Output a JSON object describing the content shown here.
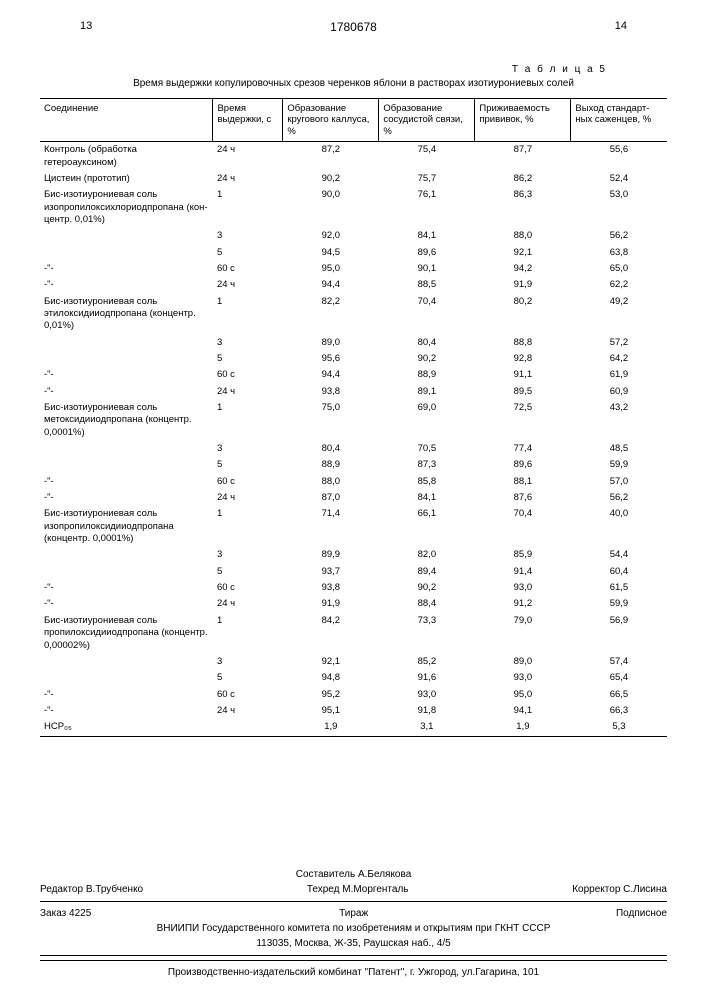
{
  "header": {
    "page_left": "13",
    "doc_number": "1780678",
    "page_right": "14"
  },
  "table": {
    "label": "Т а б л и ц а  5",
    "title": "Время выдержки копулировочных срезов черенков яблони в растворах изотиурониевых солей",
    "columns": [
      "Соединение",
      "Время выдерж­ки, с",
      "Образование кругового каллуса, %",
      "Образование сосудистой связи, %",
      "Приживае­мость при­вивок, %",
      "Выход стандарт­ных сажен­цев, %"
    ],
    "rows": [
      [
        "Контроль (обработка гетероауксином)",
        "24 ч",
        "87,2",
        "75,4",
        "87,7",
        "55,6"
      ],
      [
        "Цистеин (прототип)",
        "24 ч",
        "90,2",
        "75,7",
        "86,2",
        "52,4"
      ],
      [
        "Бис-изотиурониевая соль изопропилокси­хлориодпропана (кон­центр. 0,01%)",
        "1",
        "90,0",
        "76,1",
        "86,3",
        "53,0"
      ],
      [
        "",
        "3",
        "92,0",
        "84,1",
        "88,0",
        "56,2"
      ],
      [
        "",
        "5",
        "94,5",
        "89,6",
        "92,1",
        "63,8"
      ],
      [
        "-\"-",
        "60 с",
        "95,0",
        "90,1",
        "94,2",
        "65,0"
      ],
      [
        "-\"-",
        "24 ч",
        "94,4",
        "88,5",
        "91,9",
        "62,2"
      ],
      [
        "Бис-изотиурониевая соль этилоксидииод­пропана (концентр. 0,01%)",
        "1",
        "82,2",
        "70,4",
        "80,2",
        "49,2"
      ],
      [
        "",
        "3",
        "89,0",
        "80,4",
        "88,8",
        "57,2"
      ],
      [
        "",
        "5",
        "95,6",
        "90,2",
        "92,8",
        "64,2"
      ],
      [
        "-\"-",
        "60 с",
        "94,4",
        "88,9",
        "91,1",
        "61,9"
      ],
      [
        "-\"-",
        "24 ч",
        "93,8",
        "89,1",
        "89,5",
        "60,9"
      ],
      [
        "Бис-изотиурониевая соль метоксидииод­пропана (концентр. 0,0001%)",
        "1",
        "75,0",
        "69,0",
        "72,5",
        "43,2"
      ],
      [
        "",
        "3",
        "80,4",
        "70,5",
        "77,4",
        "48,5"
      ],
      [
        "",
        "5",
        "88,9",
        "87,3",
        "89,6",
        "59,9"
      ],
      [
        "-\"-",
        "60 с",
        "88,0",
        "85,8",
        "88,1",
        "57,0"
      ],
      [
        "-\"-",
        "24 ч",
        "87,0",
        "84,1",
        "87,6",
        "56,2"
      ],
      [
        "Бис-изотиурониевая соль изопропилоксиди­иодпропана (концентр. 0,0001%)",
        "1",
        "71,4",
        "66,1",
        "70,4",
        "40,0"
      ],
      [
        "",
        "3",
        "89,9",
        "82,0",
        "85,9",
        "54,4"
      ],
      [
        "",
        "5",
        "93,7",
        "89,4",
        "91,4",
        "60,4"
      ],
      [
        "-\"-",
        "60 с",
        "93,8",
        "90,2",
        "93,0",
        "61,5"
      ],
      [
        "-\"-",
        "24 ч",
        "91,9",
        "88,4",
        "91,2",
        "59,9"
      ],
      [
        "Бис-изотиурониевая соль пропилоксидииод­пропана (концентр. 0,00002%)",
        "1",
        "84,2",
        "73,3",
        "79,0",
        "56,9"
      ],
      [
        "",
        "3",
        "92,1",
        "85,2",
        "89,0",
        "57,4"
      ],
      [
        "",
        "5",
        "94,8",
        "91,6",
        "93,0",
        "65,4"
      ],
      [
        "-\"-",
        "60 с",
        "95,2",
        "93,0",
        "95,0",
        "66,5"
      ],
      [
        "-\"-",
        "24 ч",
        "95,1",
        "91,8",
        "94,1",
        "66,3"
      ],
      [
        "НСР₀₅",
        "",
        "1,9",
        "3,1",
        "1,9",
        "5,3"
      ]
    ]
  },
  "footer": {
    "compiler": "Составитель   А.Белякова",
    "editor": "Редактор В.Трубченко",
    "techred": "Техред М.Моргенталь",
    "corrector": "Корректор   С.Лисина",
    "order": "Заказ 4225",
    "tirazh": "Тираж",
    "podpisnoe": "Подписное",
    "org": "ВНИИПИ Государственного комитета по изобретениям и открытиям при ГКНТ СССР",
    "address": "113035, Москва, Ж-35, Раушская наб., 4/5",
    "production": "Производственно-издательский комбинат \"Патент\", г. Ужгород, ул.Гагарина, 101"
  }
}
